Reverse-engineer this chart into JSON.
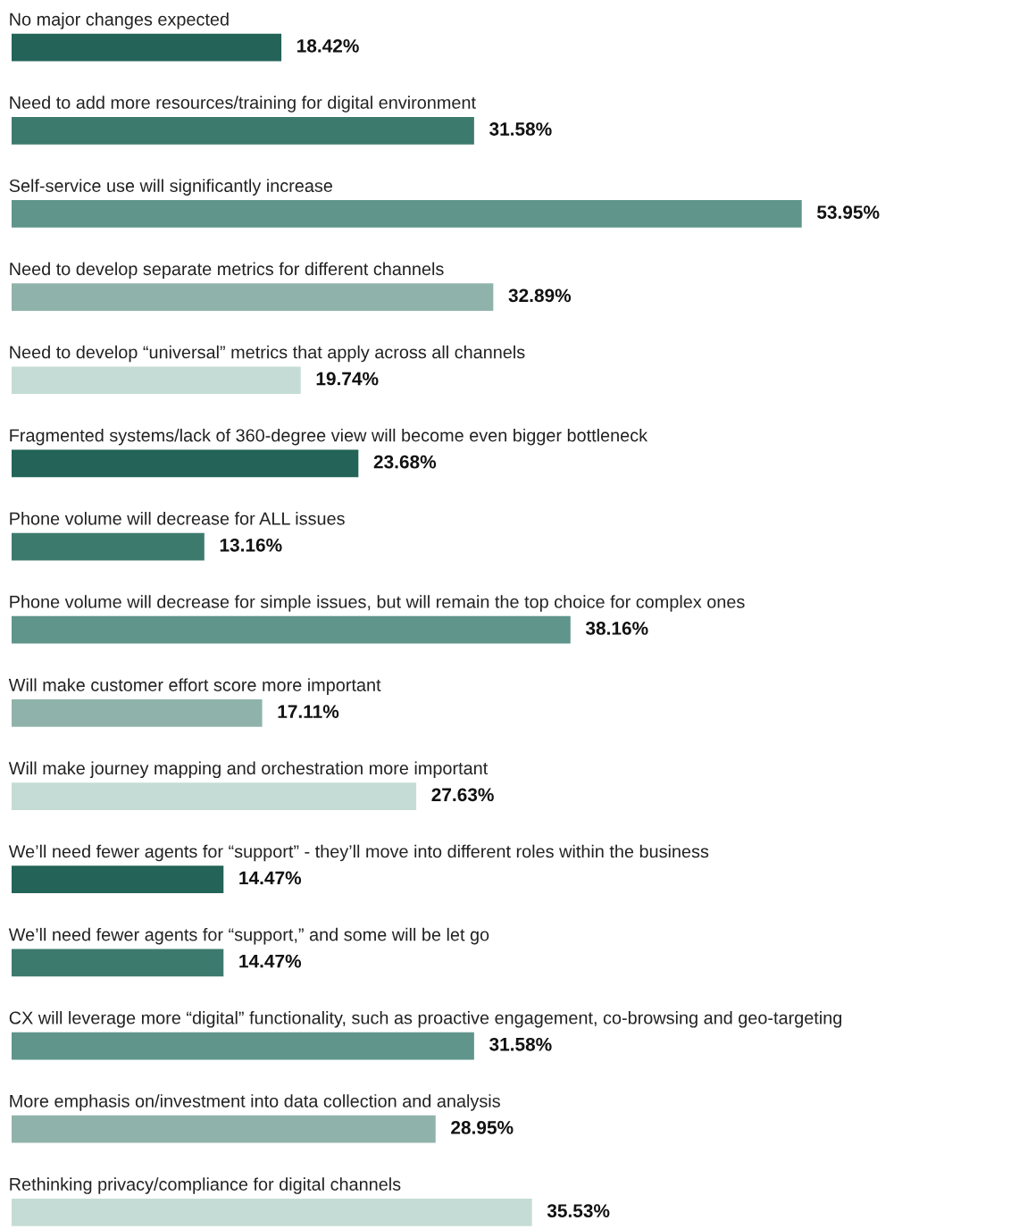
{
  "chart_data": {
    "type": "bar",
    "orientation": "horizontal",
    "value_labels": [
      "18.42%",
      "31.58%",
      "53.95%",
      "32.89%",
      "19.74%",
      "23.68%",
      "13.16%",
      "38.16%",
      "17.11%",
      "27.63%",
      "14.47%",
      "14.47%",
      "31.58%",
      "28.95%",
      "35.53%"
    ],
    "categories": [
      "No major changes expected",
      "Need to add more resources/training for digital environment",
      "Self-service use will significantly increase",
      "Need to develop separate metrics for different channels",
      "Need to develop “universal” metrics that apply across all channels",
      "Fragmented systems/lack of 360-degree view will become even bigger bottleneck",
      "Phone volume will decrease for ALL issues",
      "Phone volume will decrease for simple issues, but will remain the top choice for complex ones",
      "Will make customer effort score more important",
      "Will make journey mapping and orchestration more important",
      "We’ll need fewer agents for “support” - they’ll move into different roles within the business",
      "We’ll need fewer agents for “support,” and some will be let go",
      "CX will leverage more “digital” functionality, such as proactive engagement, co-browsing and geo-targeting",
      "More emphasis on/investment into data collection and analysis",
      "Rethinking privacy/compliance for digital channels"
    ],
    "values": [
      18.42,
      31.58,
      53.95,
      32.89,
      19.74,
      23.68,
      13.16,
      38.16,
      17.11,
      27.63,
      14.47,
      14.47,
      31.58,
      28.95,
      35.53
    ],
    "colors": [
      "#236358",
      "#3d7a6e",
      "#5f958b",
      "#8fb3aa",
      "#c5dcd6",
      "#236358",
      "#3d7a6e",
      "#5f958b",
      "#8fb3aa",
      "#c5dcd6",
      "#236358",
      "#3d7a6e",
      "#5f958b",
      "#8fb3aa",
      "#c5dcd6"
    ],
    "legend": false
  }
}
